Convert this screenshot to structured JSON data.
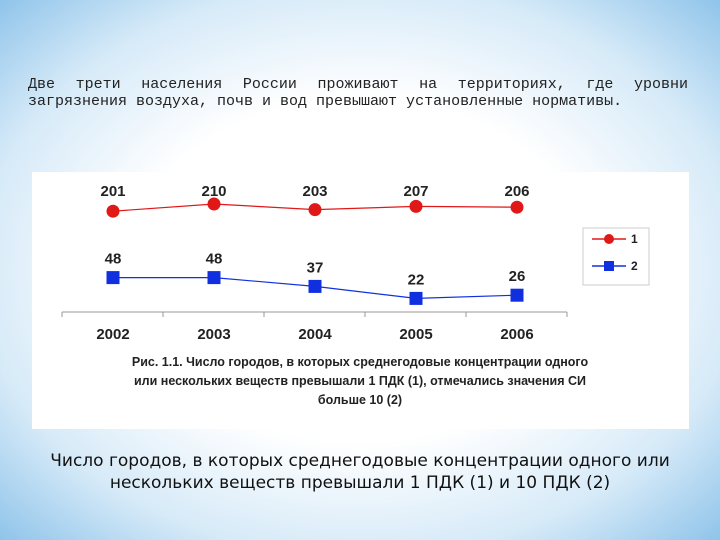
{
  "intro_text": "Две трети населения России проживают на территориях, где уровни загрязнения воздуха, почв и вод превышают установленные нормативы.",
  "caption": {
    "line1": "Число городов, в которых среднегодовые концентрации одного или",
    "line2": "нескольких веществ превышали 1 ПДК (1) и 10 ПДК (2)"
  },
  "colors": {
    "series1": "#e01818",
    "series2": "#1030e0"
  },
  "chart_data": {
    "type": "line",
    "title": "Рис. 1.1. Число городов, в которых среднегодовые концентрации одного или нескольких веществ превышали 1 ПДК (1), отмечались значения СИ больше 10 (2)",
    "title_lines": [
      "Рис. 1.1. Число городов, в которых среднегодовые концентрации одного",
      "или нескольких веществ превышали 1 ПДК (1), отмечались значения СИ",
      "больше 10 (2)"
    ],
    "categories": [
      "2002",
      "2003",
      "2004",
      "2005",
      "2006"
    ],
    "series": [
      {
        "name": "1",
        "values": [
          201,
          210,
          203,
          207,
          206
        ],
        "marker": "circle",
        "color": "#e01818"
      },
      {
        "name": "2",
        "values": [
          48,
          48,
          37,
          22,
          26
        ],
        "marker": "square",
        "color": "#1030e0"
      }
    ],
    "ylim": [
      0,
      230
    ],
    "legend_position": "right",
    "grid": false
  }
}
